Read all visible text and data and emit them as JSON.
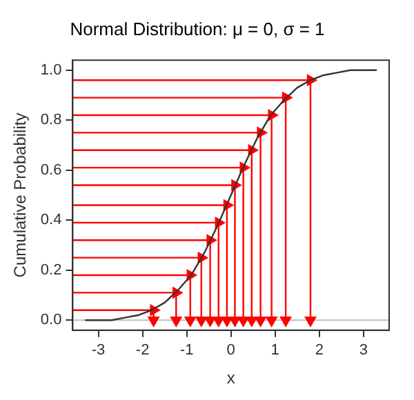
{
  "chart_data": {
    "type": "line",
    "title": "Normal Distribution: μ = 0, σ = 1",
    "xlabel": "x",
    "ylabel": "Cumulative Probability",
    "xlim": [
      -3.58,
      3.58
    ],
    "xticks": [
      -3,
      -2,
      -1,
      0,
      1,
      2,
      3
    ],
    "ylim": [
      -0.04,
      1.04
    ],
    "yticks": [
      {
        "value": 0,
        "label": "0.0"
      },
      {
        "value": 0.2,
        "label": "0.2"
      },
      {
        "value": 0.4,
        "label": "0.4"
      },
      {
        "value": 0.6,
        "label": "0.6"
      },
      {
        "value": 0.8,
        "label": "0.8"
      },
      {
        "value": 1,
        "label": "1.0"
      }
    ],
    "grid": false,
    "legend": false,
    "ref_lines": [
      {
        "axis": "y",
        "value": 0,
        "color": "#bebebe"
      }
    ],
    "series": [
      {
        "type": "line",
        "color": "#333333",
        "x": [
          -3.3,
          -3.0,
          -2.7,
          -2.4,
          -2.1,
          -1.8,
          -1.5,
          -1.2,
          -0.9,
          -0.6,
          -0.3,
          0,
          0.3,
          0.6,
          0.9,
          1.2,
          1.5,
          1.8,
          2.1,
          2.4,
          2.7,
          3.0,
          3.3
        ],
        "values": [
          0,
          0,
          0,
          0.01,
          0.02,
          0.04,
          0.07,
          0.12,
          0.18,
          0.27,
          0.38,
          0.5,
          0.62,
          0.73,
          0.82,
          0.88,
          0.93,
          0.96,
          0.98,
          0.99,
          1,
          1,
          1
        ]
      },
      {
        "type": "line",
        "color": "#ff0000",
        "marker": "triangle",
        "x": [
          -3.58,
          -1.75,
          -1.75
        ],
        "values": [
          0.04,
          0.04,
          0
        ]
      },
      {
        "type": "line",
        "color": "#ff0000",
        "marker": "triangle",
        "x": [
          -3.58,
          -1.24,
          -1.24
        ],
        "values": [
          0.11,
          0.11,
          0
        ]
      },
      {
        "type": "line",
        "color": "#ff0000",
        "marker": "triangle",
        "x": [
          -3.58,
          -0.92,
          -0.92
        ],
        "values": [
          0.18,
          0.18,
          0
        ]
      },
      {
        "type": "line",
        "color": "#ff0000",
        "marker": "triangle",
        "x": [
          -3.58,
          -0.67,
          -0.67
        ],
        "values": [
          0.25,
          0.25,
          0
        ]
      },
      {
        "type": "line",
        "color": "#ff0000",
        "marker": "triangle",
        "x": [
          -3.58,
          -0.47,
          -0.47
        ],
        "values": [
          0.32,
          0.32,
          0
        ]
      },
      {
        "type": "line",
        "color": "#ff0000",
        "marker": "triangle",
        "x": [
          -3.58,
          -0.28,
          -0.28
        ],
        "values": [
          0.39,
          0.39,
          0
        ]
      },
      {
        "type": "line",
        "color": "#ff0000",
        "marker": "triangle",
        "x": [
          -3.58,
          -0.09,
          -0.09
        ],
        "values": [
          0.46,
          0.46,
          0
        ]
      },
      {
        "type": "line",
        "color": "#ff0000",
        "marker": "triangle",
        "x": [
          -3.58,
          0.09,
          0.09
        ],
        "values": [
          0.54,
          0.54,
          0
        ]
      },
      {
        "type": "line",
        "color": "#ff0000",
        "marker": "triangle",
        "x": [
          -3.58,
          0.28,
          0.28
        ],
        "values": [
          0.61,
          0.61,
          0
        ]
      },
      {
        "type": "line",
        "color": "#ff0000",
        "marker": "triangle",
        "x": [
          -3.58,
          0.47,
          0.47
        ],
        "values": [
          0.68,
          0.68,
          0
        ]
      },
      {
        "type": "line",
        "color": "#ff0000",
        "marker": "triangle",
        "x": [
          -3.58,
          0.67,
          0.67
        ],
        "values": [
          0.75,
          0.75,
          0
        ]
      },
      {
        "type": "line",
        "color": "#ff0000",
        "marker": "triangle",
        "x": [
          -3.58,
          0.92,
          0.92
        ],
        "values": [
          0.82,
          0.82,
          0
        ]
      },
      {
        "type": "line",
        "color": "#ff0000",
        "marker": "triangle",
        "x": [
          -3.58,
          1.24,
          1.24
        ],
        "values": [
          0.89,
          0.89,
          0
        ]
      },
      {
        "type": "line",
        "color": "#ff0000",
        "marker": "triangle",
        "x": [
          -3.58,
          1.8,
          1.8
        ],
        "values": [
          0.96,
          0.96,
          0
        ]
      }
    ]
  }
}
